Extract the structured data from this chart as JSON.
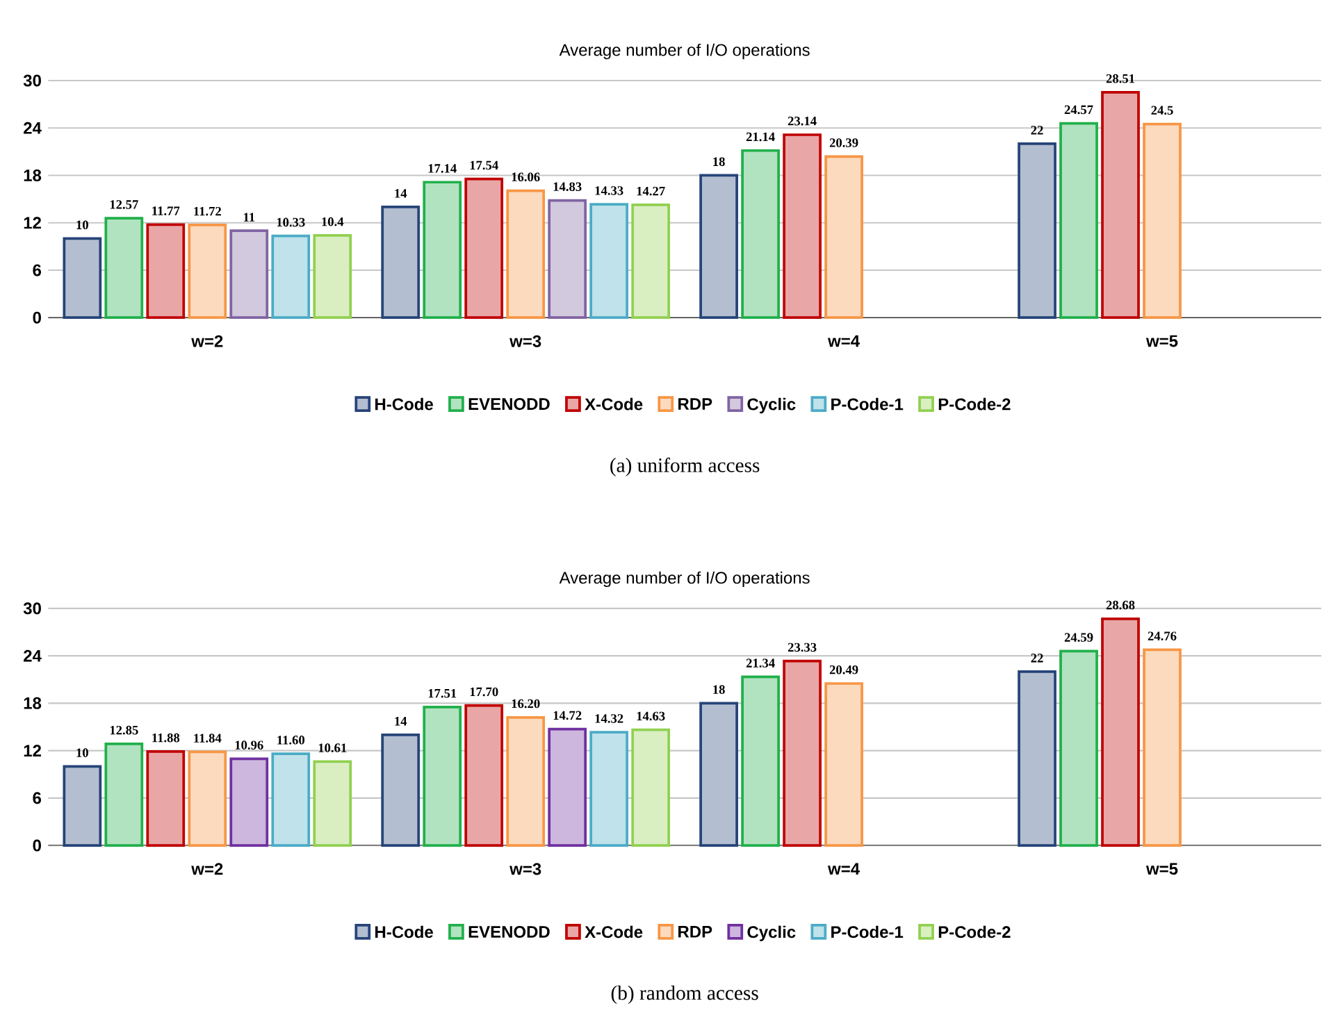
{
  "chart_data": [
    {
      "type": "bar",
      "title": "Average number of I/O operations",
      "categories": [
        "w=2",
        "w=3",
        "w=4",
        "w=5"
      ],
      "ylim": [
        0,
        30
      ],
      "yticks": [
        0,
        6,
        12,
        18,
        24,
        30
      ],
      "grid": "y",
      "legend": "bottom",
      "data_labels": true,
      "annotations": [
        "(a)  uniform access"
      ],
      "series": [
        {
          "name": "H-Code",
          "color": "#264478",
          "values": [
            10,
            14,
            18,
            22
          ]
        },
        {
          "name": "EVENODD",
          "color": "#21b04b",
          "values": [
            12.57,
            17.14,
            21.14,
            24.57
          ]
        },
        {
          "name": "X-Code",
          "color": "#c00000",
          "values": [
            11.77,
            17.54,
            23.14,
            28.51
          ]
        },
        {
          "name": "RDP",
          "color": "#f79646",
          "values": [
            11.72,
            16.06,
            20.39,
            24.5
          ]
        },
        {
          "name": "Cyclic",
          "color": "#8064a2",
          "values": [
            11,
            14.83,
            null,
            null
          ]
        },
        {
          "name": "P-Code-1",
          "color": "#4bacc6",
          "values": [
            10.33,
            14.33,
            null,
            null
          ]
        },
        {
          "name": "P-Code-2",
          "color": "#92d050",
          "values": [
            10.4,
            14.27,
            null,
            null
          ]
        }
      ]
    },
    {
      "type": "bar",
      "title": "Average number of I/O operations",
      "categories": [
        "w=2",
        "w=3",
        "w=4",
        "w=5"
      ],
      "ylim": [
        0,
        30
      ],
      "yticks": [
        0,
        6,
        12,
        18,
        24,
        30
      ],
      "grid": "y",
      "legend": "bottom",
      "annotations": [
        "(b)  random access"
      ],
      "series": [
        {
          "name": "H-Code",
          "color": "#264478",
          "values": [
            10,
            14,
            18,
            22
          ],
          "value_labels": [
            "10",
            "14",
            "18",
            "22"
          ]
        },
        {
          "name": "EVENODD",
          "color": "#21b04b",
          "values": [
            12.85,
            17.51,
            21.34,
            24.59
          ],
          "value_labels": [
            "12.85",
            "17.51",
            "21.34",
            "24.59"
          ]
        },
        {
          "name": "X-Code",
          "color": "#c00000",
          "values": [
            11.88,
            17.7,
            23.33,
            28.68
          ],
          "value_labels": [
            "11.88",
            "17.70",
            "23.33",
            "28.68"
          ]
        },
        {
          "name": "RDP",
          "color": "#f79646",
          "values": [
            11.84,
            16.2,
            20.49,
            24.76
          ],
          "value_labels": [
            "11.84",
            "16.20",
            "20.49",
            "24.76"
          ]
        },
        {
          "name": "Cyclic",
          "color": "#7030a0",
          "values": [
            10.96,
            14.72,
            null,
            null
          ],
          "value_labels": [
            "10.96",
            "14.72",
            null,
            null
          ]
        },
        {
          "name": "P-Code-1",
          "color": "#4bacc6",
          "values": [
            11.6,
            14.32,
            null,
            null
          ],
          "value_labels": [
            "11.60",
            "14.32",
            null,
            null
          ]
        },
        {
          "name": "P-Code-2",
          "color": "#92d050",
          "values": [
            10.61,
            14.63,
            null,
            null
          ],
          "value_labels": [
            "10.61",
            "14.63",
            null,
            null
          ]
        }
      ]
    }
  ]
}
